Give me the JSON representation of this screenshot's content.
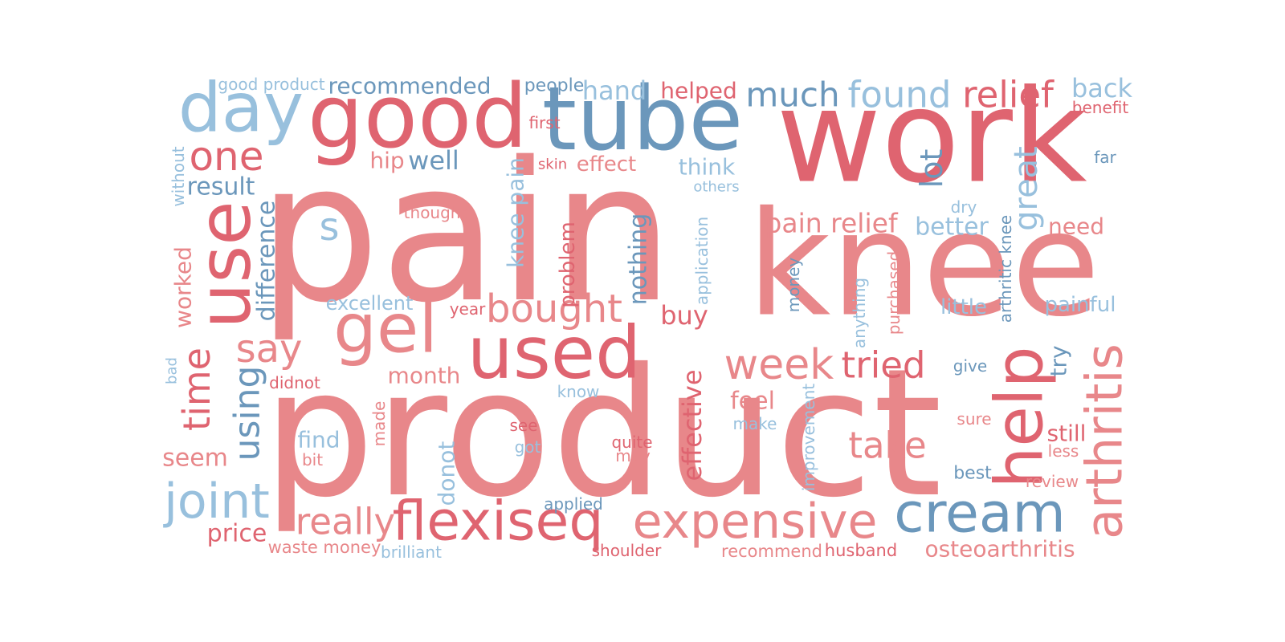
{
  "palette": {
    "rose": "#e8878a",
    "red": "#df6470",
    "steel": "#6b97bb",
    "sky": "#98c0dd"
  },
  "words": [
    {
      "text": "pain",
      "color": "rose"
    },
    {
      "text": "product",
      "color": "rose"
    },
    {
      "text": "knee",
      "color": "rose"
    },
    {
      "text": "work",
      "color": "red"
    },
    {
      "text": "good",
      "color": "red"
    },
    {
      "text": "tube",
      "color": "steel"
    },
    {
      "text": "day",
      "color": "sky"
    },
    {
      "text": "use",
      "color": "red"
    },
    {
      "text": "gel",
      "color": "rose"
    },
    {
      "text": "used",
      "color": "red"
    },
    {
      "text": "help",
      "color": "red"
    },
    {
      "text": "arthritis",
      "color": "rose"
    },
    {
      "text": "cream",
      "color": "steel"
    },
    {
      "text": "expensive",
      "color": "rose"
    },
    {
      "text": "flexiseq",
      "color": "red"
    },
    {
      "text": "joint",
      "color": "sky"
    },
    {
      "text": "relief",
      "color": "red"
    },
    {
      "text": "found",
      "color": "sky"
    },
    {
      "text": "much",
      "color": "steel"
    },
    {
      "text": "one",
      "color": "red"
    },
    {
      "text": "week",
      "color": "rose"
    },
    {
      "text": "tried",
      "color": "red"
    },
    {
      "text": "bought",
      "color": "rose"
    },
    {
      "text": "take",
      "color": "rose"
    },
    {
      "text": "really",
      "color": "rose"
    },
    {
      "text": "say",
      "color": "rose"
    },
    {
      "text": "time",
      "color": "red"
    },
    {
      "text": "using",
      "color": "steel"
    },
    {
      "text": "great",
      "color": "sky"
    },
    {
      "text": "recommended",
      "color": "steel"
    },
    {
      "text": "good product",
      "color": "sky"
    },
    {
      "text": "back",
      "color": "sky"
    },
    {
      "text": "benefit",
      "color": "red"
    },
    {
      "text": "people",
      "color": "steel"
    },
    {
      "text": "hand",
      "color": "sky"
    },
    {
      "text": "helped",
      "color": "red"
    },
    {
      "text": "result",
      "color": "steel"
    },
    {
      "text": "hip",
      "color": "rose"
    },
    {
      "text": "well",
      "color": "steel"
    },
    {
      "text": "skin",
      "color": "red"
    },
    {
      "text": "effect",
      "color": "rose"
    },
    {
      "text": "first",
      "color": "red"
    },
    {
      "text": "think",
      "color": "sky"
    },
    {
      "text": "others",
      "color": "sky"
    },
    {
      "text": "far",
      "color": "steel"
    },
    {
      "text": "without",
      "color": "sky"
    },
    {
      "text": "lot",
      "color": "steel"
    },
    {
      "text": "s",
      "color": "sky"
    },
    {
      "text": "thought",
      "color": "rose"
    },
    {
      "text": "pain relief",
      "color": "rose"
    },
    {
      "text": "dry",
      "color": "sky"
    },
    {
      "text": "better",
      "color": "sky"
    },
    {
      "text": "need",
      "color": "rose"
    },
    {
      "text": "difference",
      "color": "steel"
    },
    {
      "text": "knee pain",
      "color": "sky"
    },
    {
      "text": "problem",
      "color": "red"
    },
    {
      "text": "nothing",
      "color": "steel"
    },
    {
      "text": "application",
      "color": "sky"
    },
    {
      "text": "money",
      "color": "steel"
    },
    {
      "text": "anything",
      "color": "sky"
    },
    {
      "text": "purchased",
      "color": "rose"
    },
    {
      "text": "arthritic knee",
      "color": "steel"
    },
    {
      "text": "worked",
      "color": "rose"
    },
    {
      "text": "excellent",
      "color": "sky"
    },
    {
      "text": "year",
      "color": "red"
    },
    {
      "text": "little",
      "color": "sky"
    },
    {
      "text": "painful",
      "color": "sky"
    },
    {
      "text": "buy",
      "color": "red"
    },
    {
      "text": "try",
      "color": "steel"
    },
    {
      "text": "give",
      "color": "steel"
    },
    {
      "text": "bad",
      "color": "sky"
    },
    {
      "text": "didnot",
      "color": "red"
    },
    {
      "text": "month",
      "color": "rose"
    },
    {
      "text": "know",
      "color": "sky"
    },
    {
      "text": "feel",
      "color": "rose"
    },
    {
      "text": "effective",
      "color": "red"
    },
    {
      "text": "make",
      "color": "sky"
    },
    {
      "text": "improvement",
      "color": "sky"
    },
    {
      "text": "sure",
      "color": "rose"
    },
    {
      "text": "still",
      "color": "red"
    },
    {
      "text": "less",
      "color": "rose"
    },
    {
      "text": "made",
      "color": "rose"
    },
    {
      "text": "see",
      "color": "red"
    },
    {
      "text": "find",
      "color": "sky"
    },
    {
      "text": "bit",
      "color": "rose"
    },
    {
      "text": "got",
      "color": "sky"
    },
    {
      "text": "quite",
      "color": "red"
    },
    {
      "text": "may",
      "color": "rose"
    },
    {
      "text": "seem",
      "color": "rose"
    },
    {
      "text": "donot",
      "color": "sky"
    },
    {
      "text": "best",
      "color": "steel"
    },
    {
      "text": "review",
      "color": "rose"
    },
    {
      "text": "applied",
      "color": "steel"
    },
    {
      "text": "price",
      "color": "red"
    },
    {
      "text": "waste money",
      "color": "rose"
    },
    {
      "text": "brilliant",
      "color": "sky"
    },
    {
      "text": "shoulder",
      "color": "red"
    },
    {
      "text": "recommend",
      "color": "rose"
    },
    {
      "text": "husband",
      "color": "red"
    },
    {
      "text": "osteoarthritis",
      "color": "rose"
    }
  ]
}
